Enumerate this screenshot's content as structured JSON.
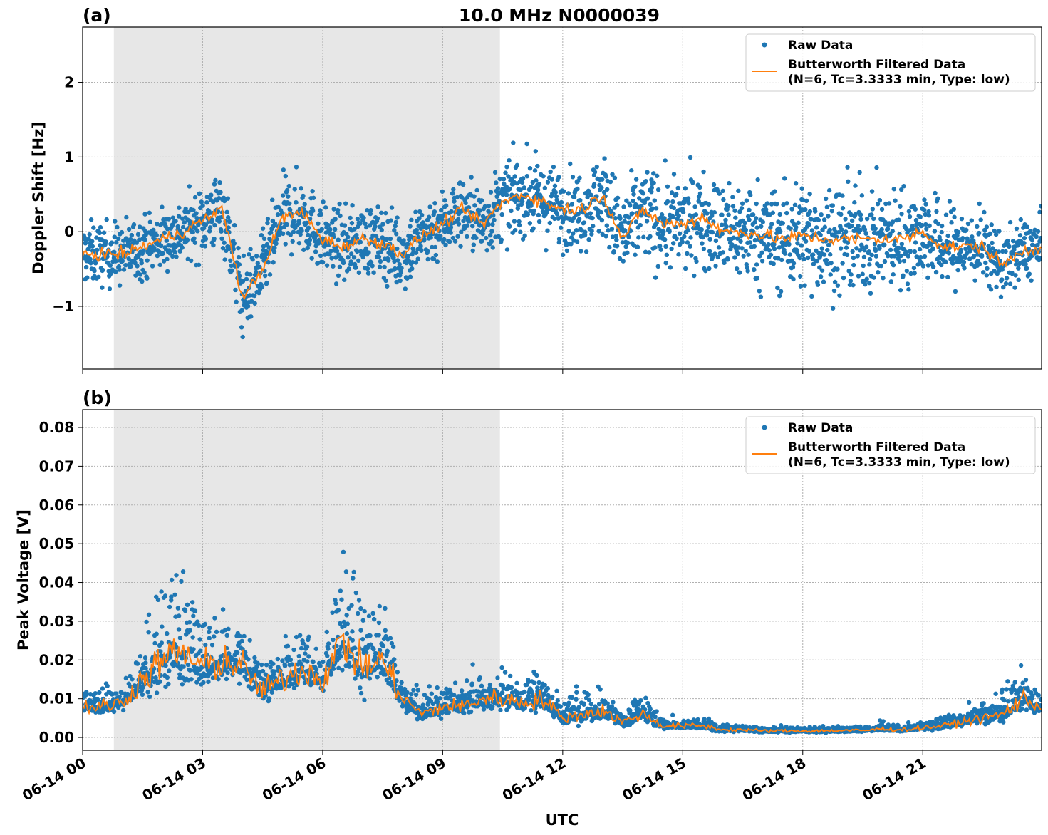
{
  "chart_data": [
    {
      "type": "scatter",
      "panel_label": "(a)",
      "title": "10.0 MHz N0000039",
      "xlabel": "",
      "ylabel": "Doppler Shift [Hz]",
      "x_unit": "hours UTC since 06-14 00",
      "xlim": [
        0,
        23.97
      ],
      "ylim": [
        -1.84,
        2.74
      ],
      "yticks": [
        2,
        1,
        0,
        -1
      ],
      "ytick_labels": [
        "2",
        "1",
        "0",
        "−1"
      ],
      "grid": true,
      "shaded_interval_hours": [
        0.78,
        10.43
      ],
      "legend": {
        "placement": "top-right",
        "entries": [
          "Raw Data",
          "Butterworth Filtered Data",
          "(N=6, Tc=3.3333 min, Type: low)"
        ]
      },
      "x": [
        0,
        0.5,
        1,
        1.5,
        2,
        2.5,
        3,
        3.5,
        4,
        4.5,
        5,
        5.5,
        6,
        6.5,
        7,
        7.5,
        8,
        8.5,
        9,
        9.5,
        10,
        10.5,
        11,
        11.5,
        12,
        12.5,
        13,
        13.5,
        14,
        14.5,
        15,
        15.5,
        16,
        16.5,
        17,
        17.5,
        18,
        18.5,
        19,
        19.5,
        20,
        20.5,
        21,
        21.5,
        22,
        22.5,
        23,
        23.5,
        24
      ],
      "series": [
        {
          "name": "Butterworth Filtered Data",
          "color": "#ff7f0e",
          "values": [
            -0.3,
            -0.3,
            -0.3,
            -0.2,
            -0.1,
            0.0,
            0.15,
            0.3,
            -0.9,
            -0.5,
            0.2,
            0.25,
            -0.1,
            -0.2,
            -0.1,
            -0.15,
            -0.3,
            -0.05,
            0.1,
            0.3,
            0.1,
            0.4,
            0.5,
            0.4,
            0.3,
            0.3,
            0.5,
            -0.1,
            0.3,
            0.1,
            0.1,
            0.2,
            0.0,
            0.0,
            -0.05,
            -0.1,
            -0.05,
            -0.1,
            -0.1,
            -0.1,
            -0.1,
            -0.1,
            0.0,
            -0.2,
            -0.2,
            -0.2,
            -0.45,
            -0.25,
            -0.2
          ]
        },
        {
          "name": "Raw Data",
          "color": "#1f77b4",
          "spread": [
            0.4,
            0.4,
            0.4,
            0.4,
            0.4,
            0.4,
            0.45,
            0.5,
            0.5,
            0.45,
            0.5,
            0.5,
            0.45,
            0.45,
            0.45,
            0.45,
            0.5,
            0.45,
            0.45,
            0.45,
            0.45,
            0.5,
            0.5,
            0.5,
            0.5,
            0.5,
            0.55,
            0.6,
            0.6,
            0.6,
            0.6,
            0.6,
            0.65,
            0.65,
            0.65,
            0.7,
            0.7,
            0.7,
            0.7,
            0.7,
            0.65,
            0.65,
            0.6,
            0.55,
            0.5,
            0.45,
            0.4,
            0.4,
            0.4
          ]
        }
      ]
    },
    {
      "type": "scatter",
      "panel_label": "(b)",
      "xlabel": "UTC",
      "ylabel": "Peak Voltage [V]",
      "xlim": [
        0,
        23.97
      ],
      "ylim": [
        -0.0033,
        0.0846
      ],
      "yticks": [
        0.0,
        0.01,
        0.02,
        0.03,
        0.04,
        0.05,
        0.06,
        0.07,
        0.08
      ],
      "ytick_labels": [
        "0.00",
        "0.01",
        "0.02",
        "0.03",
        "0.04",
        "0.05",
        "0.06",
        "0.07",
        "0.08"
      ],
      "xtick_labels": [
        "06-14 00",
        "06-14 03",
        "06-14 06",
        "06-14 09",
        "06-14 12",
        "06-14 15",
        "06-14 18",
        "06-14 21"
      ],
      "xticks_hours": [
        0,
        3,
        6,
        9,
        12,
        15,
        18,
        21
      ],
      "grid": true,
      "shaded_interval_hours": [
        0.78,
        10.43
      ],
      "legend": {
        "placement": "top-right",
        "entries": [
          "Raw Data",
          "Butterworth Filtered Data",
          "(N=6, Tc=3.3333 min, Type: low)"
        ]
      },
      "x": [
        0,
        0.5,
        1,
        1.5,
        2,
        2.5,
        3,
        3.5,
        4,
        4.5,
        5,
        5.5,
        6,
        6.5,
        7,
        7.5,
        8,
        8.5,
        9,
        9.5,
        10,
        10.5,
        11,
        11.5,
        12,
        12.5,
        13,
        13.5,
        14,
        14.5,
        15,
        15.5,
        16,
        16.5,
        17,
        17.5,
        18,
        18.5,
        19,
        19.5,
        20,
        20.5,
        21,
        21.5,
        22,
        22.5,
        23,
        23.5,
        24
      ],
      "series": [
        {
          "name": "Butterworth Filtered Data",
          "color": "#ff7f0e",
          "values": [
            0.008,
            0.008,
            0.009,
            0.015,
            0.02,
            0.022,
            0.018,
            0.02,
            0.018,
            0.012,
            0.015,
            0.018,
            0.015,
            0.025,
            0.018,
            0.02,
            0.01,
            0.006,
            0.008,
            0.008,
            0.01,
            0.01,
            0.009,
            0.01,
            0.005,
            0.006,
            0.007,
            0.004,
            0.006,
            0.003,
            0.003,
            0.003,
            0.002,
            0.002,
            0.0017,
            0.0017,
            0.0017,
            0.0017,
            0.0018,
            0.0018,
            0.0022,
            0.002,
            0.0025,
            0.003,
            0.004,
            0.005,
            0.006,
            0.01,
            0.008
          ]
        },
        {
          "name": "Raw Data",
          "color": "#1f77b4",
          "spread": [
            0.005,
            0.005,
            0.006,
            0.01,
            0.018,
            0.02,
            0.014,
            0.012,
            0.01,
            0.008,
            0.009,
            0.01,
            0.01,
            0.02,
            0.018,
            0.015,
            0.007,
            0.005,
            0.006,
            0.006,
            0.008,
            0.007,
            0.006,
            0.007,
            0.004,
            0.006,
            0.005,
            0.003,
            0.005,
            0.002,
            0.002,
            0.002,
            0.0015,
            0.001,
            0.001,
            0.001,
            0.001,
            0.001,
            0.001,
            0.001,
            0.0015,
            0.001,
            0.0015,
            0.002,
            0.003,
            0.004,
            0.006,
            0.008,
            0.006
          ]
        }
      ]
    }
  ]
}
